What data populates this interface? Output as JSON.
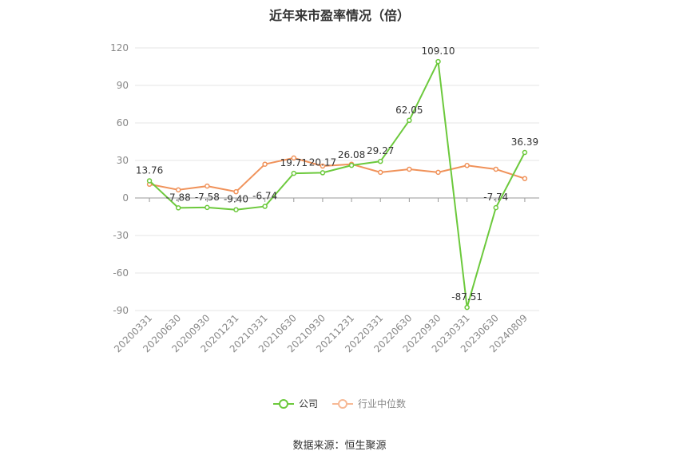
{
  "chart_data": {
    "type": "line",
    "title": "近年来市盈率情况（倍）",
    "categories": [
      "20200331",
      "20200630",
      "20200930",
      "20201231",
      "20210331",
      "20210630",
      "20210930",
      "20211231",
      "20220331",
      "20220630",
      "20220930",
      "20230331",
      "20230630",
      "20240809"
    ],
    "ylim": [
      -90,
      120
    ],
    "yticks": [
      -90,
      -60,
      -30,
      0,
      30,
      60,
      90,
      120
    ],
    "grid": true,
    "legend_position": "bottom",
    "series": [
      {
        "name": "公司",
        "color": "#6cc93c",
        "values": [
          13.76,
          -7.88,
          -7.58,
          -9.4,
          -6.74,
          19.71,
          20.17,
          26.08,
          29.27,
          62.05,
          109.1,
          -87.51,
          -7.74,
          36.39
        ],
        "labels": [
          "13.76",
          "-7.88",
          "-7.58",
          "-9.40",
          "-6.74",
          "19.71",
          "20.17",
          "26.08",
          "29.27",
          "62.05",
          "109.10",
          "-87.51",
          "-7.74",
          "36.39"
        ]
      },
      {
        "name": "行业中位数",
        "color": "#f0925a",
        "values": [
          11.0,
          6.5,
          9.5,
          5.0,
          27.0,
          32.0,
          25.5,
          27.0,
          20.5,
          23.0,
          20.5,
          26.0,
          23.0,
          15.5
        ]
      }
    ]
  },
  "source": "数据来源：恒生聚源"
}
